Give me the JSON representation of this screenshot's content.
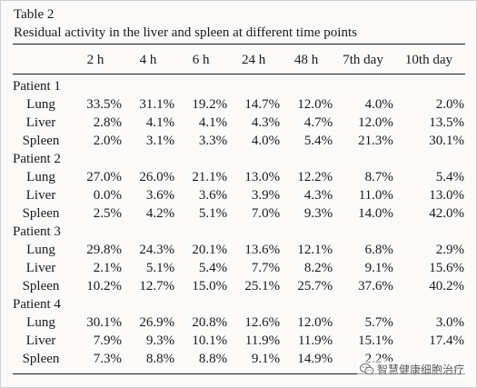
{
  "table": {
    "label": "Table 2",
    "caption": "Residual activity in the liver and spleen at different time points",
    "columns": [
      "2 h",
      "4 h",
      "6 h",
      "24 h",
      "48 h",
      "7th day",
      "10th day"
    ],
    "groups": [
      {
        "name": "Patient 1",
        "rows": [
          {
            "organ": "Lung",
            "values": [
              "33.5%",
              "31.1%",
              "19.2%",
              "14.7%",
              "12.0%",
              "4.0%",
              "2.0%"
            ]
          },
          {
            "organ": "Liver",
            "values": [
              "2.8%",
              "4.1%",
              "4.1%",
              "4.3%",
              "4.7%",
              "12.0%",
              "13.5%"
            ]
          },
          {
            "organ": "Spleen",
            "values": [
              "2.0%",
              "3.1%",
              "3.3%",
              "4.0%",
              "5.4%",
              "21.3%",
              "30.1%"
            ]
          }
        ]
      },
      {
        "name": "Patient 2",
        "rows": [
          {
            "organ": "Lung",
            "values": [
              "27.0%",
              "26.0%",
              "21.1%",
              "13.0%",
              "12.2%",
              "8.7%",
              "5.4%"
            ]
          },
          {
            "organ": "Liver",
            "values": [
              "0.0%",
              "3.6%",
              "3.6%",
              "3.9%",
              "4.3%",
              "11.0%",
              "13.0%"
            ]
          },
          {
            "organ": "Spleen",
            "values": [
              "2.5%",
              "4.2%",
              "5.1%",
              "7.0%",
              "9.3%",
              "14.0%",
              "42.0%"
            ]
          }
        ]
      },
      {
        "name": "Patient 3",
        "rows": [
          {
            "organ": "Lung",
            "values": [
              "29.8%",
              "24.3%",
              "20.1%",
              "13.6%",
              "12.1%",
              "6.8%",
              "2.9%"
            ]
          },
          {
            "organ": "Liver",
            "values": [
              "2.1%",
              "5.1%",
              "5.4%",
              "7.7%",
              "8.2%",
              "9.1%",
              "15.6%"
            ]
          },
          {
            "organ": "Spleen",
            "values": [
              "10.2%",
              "12.7%",
              "15.0%",
              "25.1%",
              "25.7%",
              "37.6%",
              "40.2%"
            ]
          }
        ]
      },
      {
        "name": "Patient 4",
        "rows": [
          {
            "organ": "Lung",
            "values": [
              "30.1%",
              "26.9%",
              "20.8%",
              "12.6%",
              "12.0%",
              "5.7%",
              "3.0%"
            ]
          },
          {
            "organ": "Liver",
            "values": [
              "7.9%",
              "9.3%",
              "10.1%",
              "11.9%",
              "11.9%",
              "15.1%",
              "17.4%"
            ]
          },
          {
            "organ": "Spleen",
            "values": [
              "7.3%",
              "8.8%",
              "8.8%",
              "9.1%",
              "14.9%",
              "2.2%",
              ""
            ]
          }
        ]
      }
    ]
  },
  "watermark": {
    "text": "智慧健康细胞治疗",
    "icon": "wechat-icon"
  }
}
